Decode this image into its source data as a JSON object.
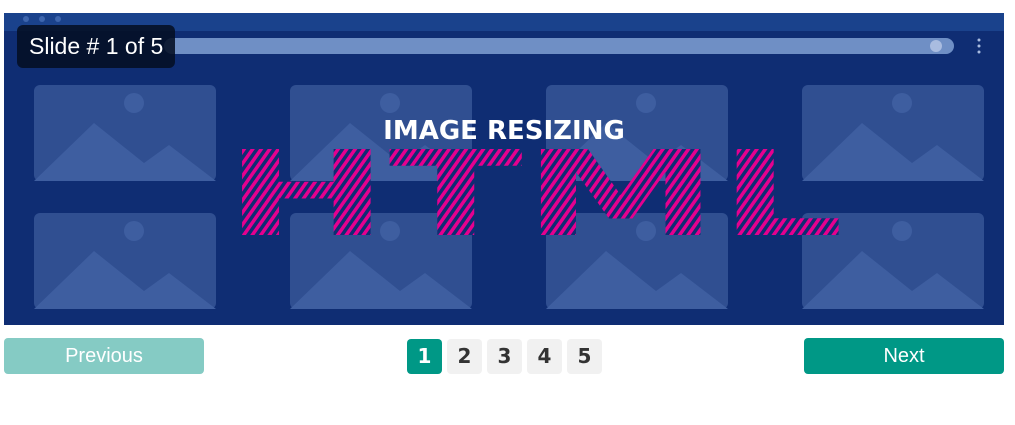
{
  "slider": {
    "counter_text": "Slide # 1 of 5",
    "image": {
      "banner_top": "IMAGE RESIZING",
      "banner_main": "HTML"
    }
  },
  "controls": {
    "previous_label": "Previous",
    "next_label": "Next",
    "pages": [
      "1",
      "2",
      "3",
      "4",
      "5"
    ],
    "active_page": "1"
  },
  "colors": {
    "slide_bg": "#0f2d73",
    "accent": "#009886",
    "accent_disabled": "#85cbc4",
    "magenta": "#e5008f"
  }
}
